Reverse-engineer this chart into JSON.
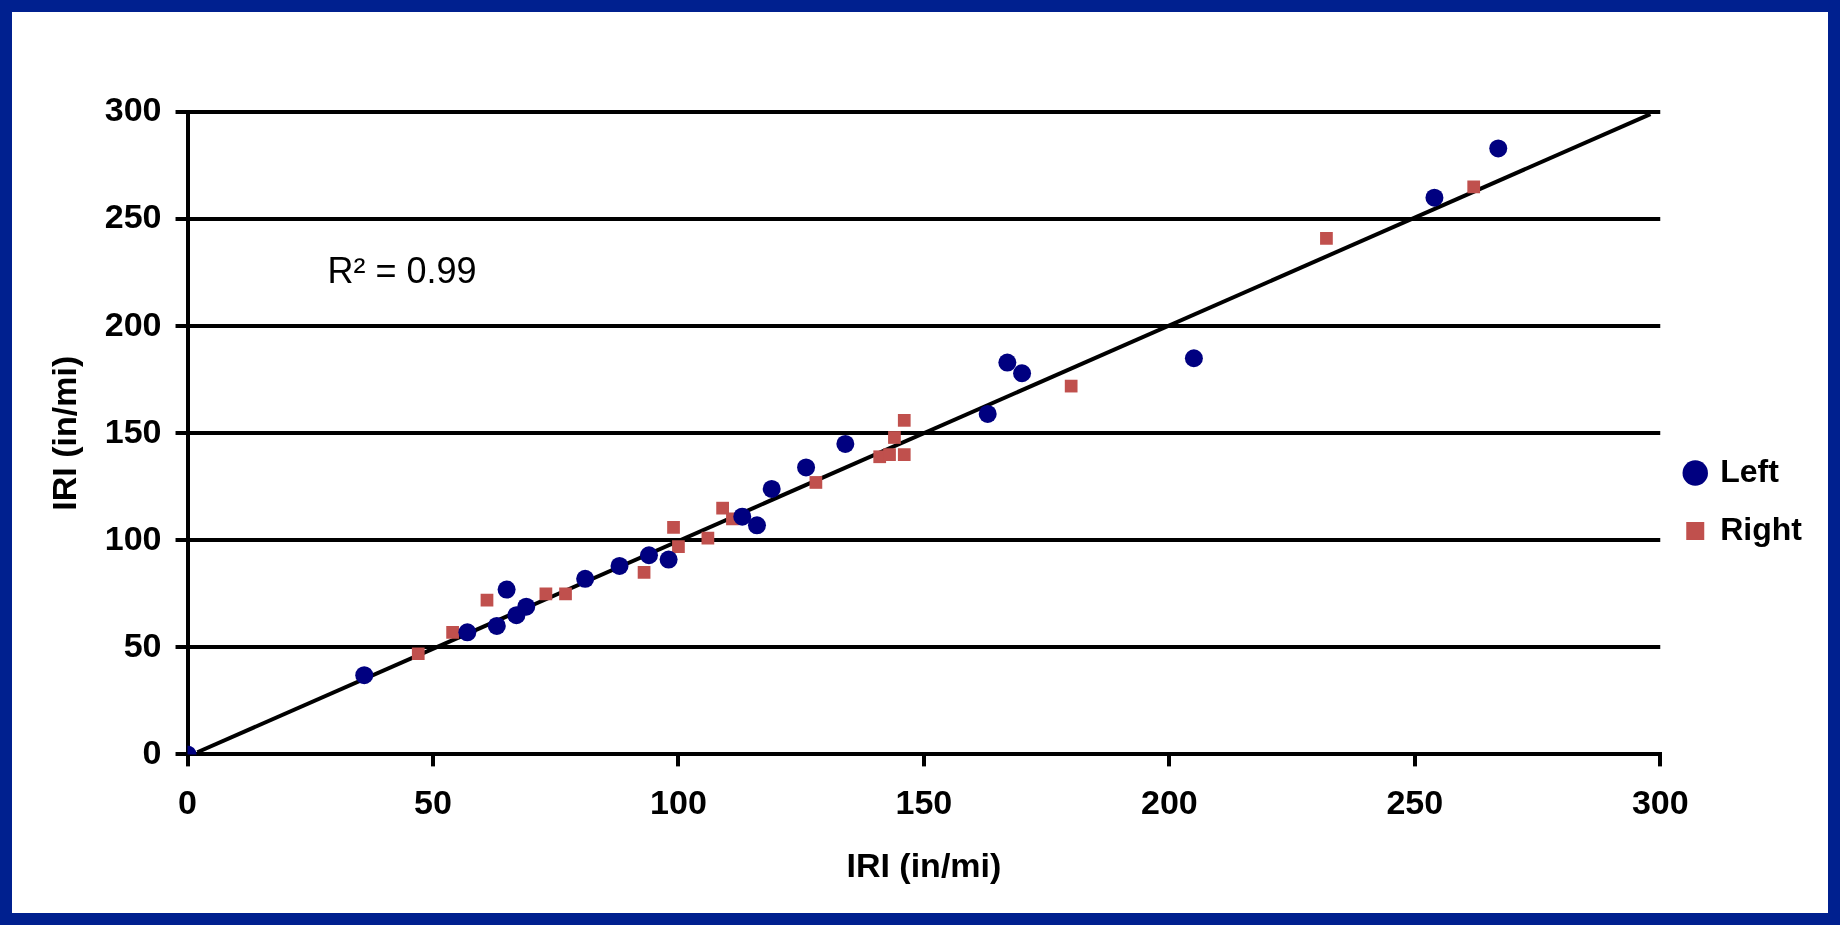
{
  "chart_data": {
    "type": "scatter",
    "xlabel": "IRI (in/mi)",
    "ylabel": "IRI (in/mi)",
    "xlim": [
      0,
      300
    ],
    "ylim": [
      0,
      300
    ],
    "xticks": [
      0,
      50,
      100,
      150,
      200,
      250,
      300
    ],
    "yticks": [
      0,
      50,
      100,
      150,
      200,
      250,
      300
    ],
    "grid": "y",
    "legend": "right",
    "annotations": [
      "R² = 0.99"
    ],
    "series": [
      {
        "name": "Left",
        "color": "#000080",
        "marker": "circle",
        "x": [
          0,
          36,
          57,
          63,
          65,
          67,
          69,
          81,
          88,
          94,
          98,
          113,
          116,
          119,
          126,
          134,
          163,
          167,
          170,
          205,
          254,
          267
        ],
        "values": [
          0,
          37,
          57,
          60,
          77,
          65,
          69,
          82,
          88,
          93,
          91,
          111,
          107,
          124,
          134,
          145,
          159,
          183,
          178,
          185,
          260,
          283
        ]
      },
      {
        "name": "Right",
        "color": "#c0504d",
        "marker": "square",
        "x": [
          47,
          54,
          61,
          73,
          77,
          93,
          99,
          100,
          106,
          109,
          111,
          128,
          141,
          143,
          144,
          146,
          146,
          180,
          232,
          262
        ],
        "values": [
          47,
          57,
          72,
          75,
          75,
          85,
          106,
          97,
          101,
          115,
          110,
          127,
          139,
          140,
          148,
          156,
          140,
          172,
          241,
          265
        ]
      },
      {
        "type": "line",
        "color": "#000000",
        "marker": "none",
        "x": [
          2,
          298
        ],
        "values": [
          1,
          299
        ]
      }
    ]
  }
}
